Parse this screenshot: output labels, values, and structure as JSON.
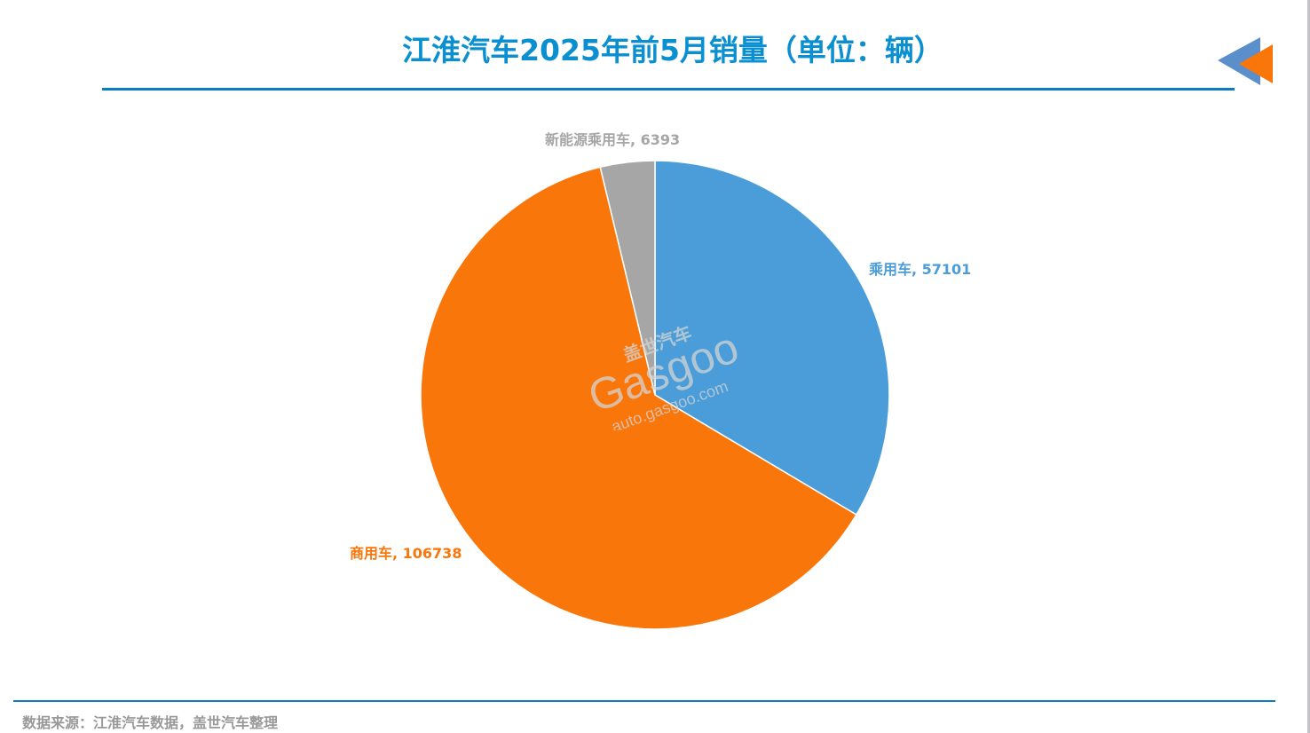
{
  "header": {
    "title": "江淮汽车2025年前5月销量（单位：辆）"
  },
  "logo": {
    "icon": "double-triangle-left-icon",
    "colors": [
      "#5b8fcb",
      "#f9760a"
    ]
  },
  "labels": {
    "nev": "新能源乘用车, 6393",
    "passenger": "乘用车, 57101",
    "commercial": "商用车, 106738"
  },
  "watermark": {
    "brand_cn": "盖世汽车",
    "brand_en": "Gasgoo",
    "url": "auto.gasgoo.com"
  },
  "footer": {
    "source": "数据来源：江淮汽车数据，盖世汽车整理"
  },
  "colors": {
    "title": "#0a8fd0",
    "line": "#0a7cc4",
    "passenger": "#4a9dd9",
    "commercial": "#f9760a",
    "nev": "#a6a6a6"
  },
  "chart_data": {
    "type": "pie",
    "title": "江淮汽车2025年前5月销量（单位：辆）",
    "categories": [
      "乘用车",
      "商用车",
      "新能源乘用车"
    ],
    "values": [
      57101,
      106738,
      6393
    ],
    "colors": [
      "#4a9dd9",
      "#f9760a",
      "#a6a6a6"
    ],
    "data_labels": [
      "乘用车, 57101",
      "商用车, 106738",
      "新能源乘用车, 6393"
    ],
    "start_angle": 0,
    "direction": "clockwise",
    "legend": "none"
  }
}
